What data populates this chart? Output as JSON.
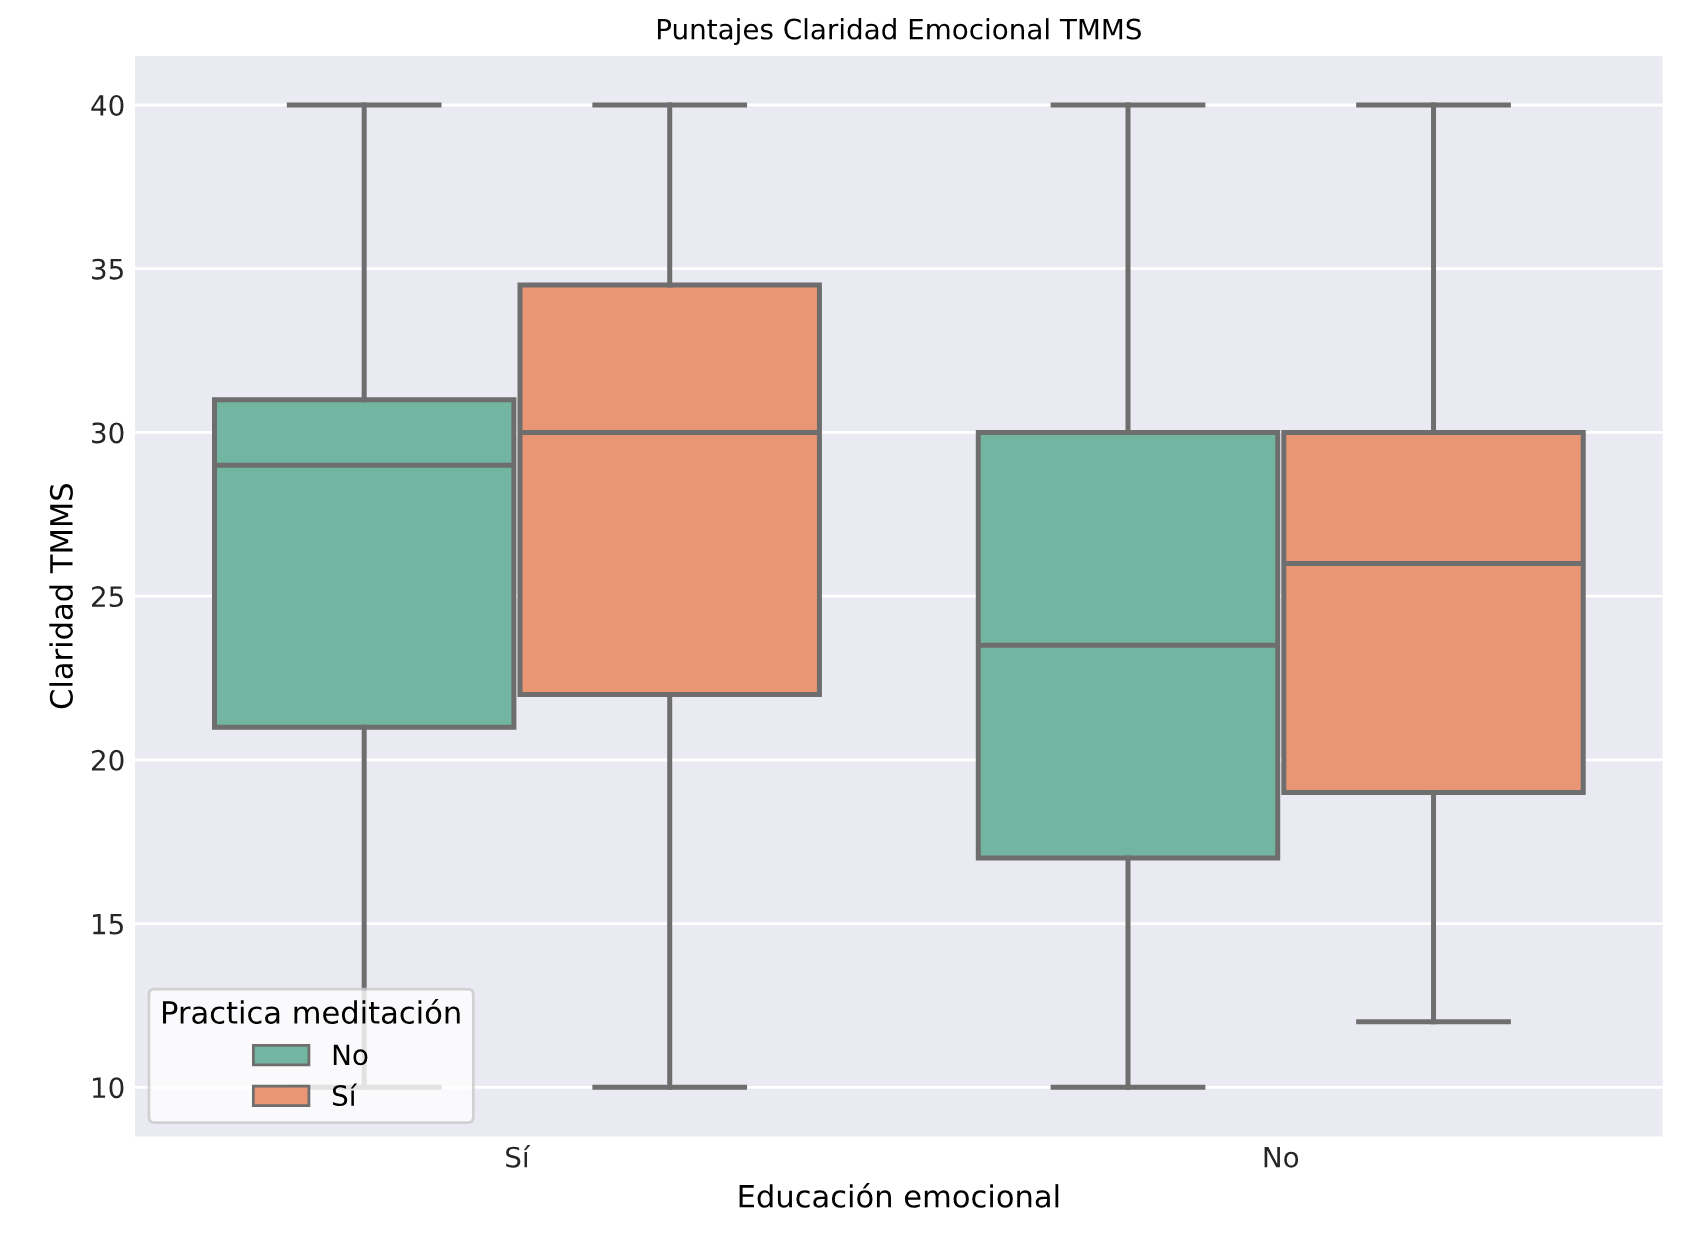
{
  "chart_data": {
    "type": "box",
    "title": "Puntajes Claridad Emocional TMMS",
    "xlabel": "Educación emocional",
    "ylabel": "Claridad TMMS",
    "categories": [
      "Sí",
      "No"
    ],
    "legend_title": "Practica meditación",
    "legend": "bottom left",
    "grid": "y",
    "ylim": [
      8.5,
      41.5
    ],
    "yticks": [
      10,
      15,
      20,
      25,
      30,
      35,
      40
    ],
    "series": [
      {
        "name": "No",
        "color": "#72b6a1",
        "boxes": [
          {
            "low": 10,
            "q1": 21,
            "median": 29,
            "q3": 31,
            "high": 40
          },
          {
            "low": 10,
            "q1": 17,
            "median": 23.5,
            "q3": 30,
            "high": 40
          }
        ]
      },
      {
        "name": "Sí",
        "color": "#e99675",
        "boxes": [
          {
            "low": 10,
            "q1": 22,
            "median": 30,
            "q3": 34.5,
            "high": 40
          },
          {
            "low": 12,
            "q1": 19,
            "median": 26,
            "q3": 30,
            "high": 40
          }
        ]
      }
    ]
  }
}
